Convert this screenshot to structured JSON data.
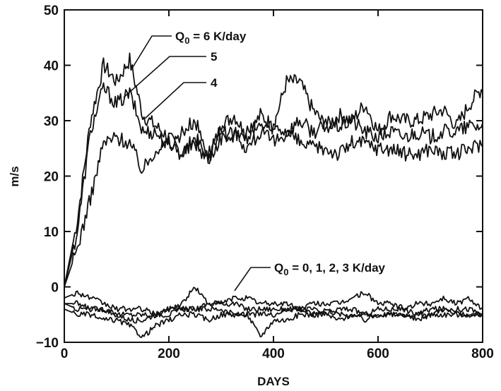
{
  "chart_data": {
    "type": "line",
    "title": "",
    "xlabel": "DAYS",
    "ylabel": "m/s",
    "xlim": [
      0,
      800
    ],
    "ylim": [
      -10,
      50
    ],
    "x_ticks": [
      0,
      200,
      400,
      600,
      800
    ],
    "y_ticks": [
      -10,
      0,
      10,
      20,
      30,
      40,
      50
    ],
    "grid": false,
    "legend": "none",
    "line_color": "#111111",
    "annotations": [
      {
        "id": "q6",
        "parts": [
          "Q",
          "0",
          " = 6 K/day"
        ],
        "points_to_series": "6"
      },
      {
        "id": "q5",
        "parts": [
          "5",
          "",
          ""
        ],
        "points_to_series": "5"
      },
      {
        "id": "q4",
        "parts": [
          "4",
          "",
          ""
        ],
        "points_to_series": "4"
      },
      {
        "id": "q0123",
        "parts": [
          "Q",
          "0",
          " = 0, 1, 2, 3 K/day"
        ],
        "points_to_series": "low"
      }
    ],
    "x": [
      0,
      25,
      50,
      75,
      100,
      125,
      150,
      175,
      200,
      225,
      250,
      275,
      300,
      325,
      350,
      375,
      400,
      425,
      450,
      475,
      500,
      525,
      550,
      575,
      600,
      625,
      650,
      675,
      700,
      725,
      750,
      775,
      800
    ],
    "series": [
      {
        "key": "6",
        "values": [
          0,
          12,
          30,
          40,
          37,
          41,
          31,
          29,
          27,
          24,
          27,
          23,
          29,
          31,
          27,
          31,
          29,
          37,
          37,
          32,
          29,
          31,
          30,
          33,
          28,
          31,
          30,
          30,
          31,
          32,
          29,
          33,
          36
        ]
      },
      {
        "key": "5",
        "values": [
          0,
          10,
          28,
          36,
          33,
          35,
          28,
          28,
          25,
          28,
          30,
          24,
          28,
          27,
          28,
          29,
          29,
          28,
          30,
          28,
          29,
          29,
          30,
          28,
          27,
          28,
          27,
          28,
          27,
          28,
          28,
          29,
          29
        ]
      },
      {
        "key": "4",
        "values": [
          0,
          7,
          16,
          26,
          27,
          26,
          21,
          25,
          26,
          24,
          26,
          23,
          27,
          28,
          25,
          28,
          26,
          28,
          26,
          25,
          25,
          24,
          26,
          26,
          25,
          25,
          24,
          24,
          25,
          24,
          24,
          25,
          26
        ]
      },
      {
        "key": "3",
        "values": [
          -2,
          -1,
          -2,
          -3,
          -4,
          -4,
          -4,
          -5,
          -4,
          -3,
          0,
          -3,
          -3,
          -2,
          -2,
          -3,
          -3,
          -3,
          -4,
          -3,
          -3,
          -3,
          -2,
          -1,
          -3,
          -3,
          -4,
          -3,
          -3,
          -2,
          -3,
          -2,
          -4
        ]
      },
      {
        "key": "2",
        "values": [
          -3,
          -3,
          -4,
          -4,
          -5,
          -5,
          -5,
          -5,
          -4,
          -4,
          -4,
          -3,
          -3,
          -3,
          -4,
          -4,
          -4,
          -4,
          -4,
          -4,
          -5,
          -4,
          -4,
          -5,
          -4,
          -4,
          -4,
          -5,
          -4,
          -4,
          -4,
          -4,
          -5
        ]
      },
      {
        "key": "1",
        "values": [
          -3,
          -4,
          -4,
          -4,
          -5,
          -6,
          -6,
          -5,
          -5,
          -4,
          -4,
          -4,
          -4,
          -5,
          -5,
          -5,
          -5,
          -4,
          -4,
          -5,
          -4,
          -5,
          -5,
          -5,
          -5,
          -5,
          -5,
          -5,
          -5,
          -4,
          -5,
          -5,
          -5
        ]
      },
      {
        "key": "0",
        "values": [
          -4,
          -5,
          -5,
          -6,
          -6,
          -7,
          -9,
          -7,
          -6,
          -5,
          -5,
          -6,
          -5,
          -5,
          -5,
          -9,
          -6,
          -6,
          -5,
          -5,
          -5,
          -6,
          -5,
          -6,
          -5,
          -5,
          -5,
          -6,
          -5,
          -5,
          -5,
          -5,
          -5
        ]
      }
    ]
  }
}
